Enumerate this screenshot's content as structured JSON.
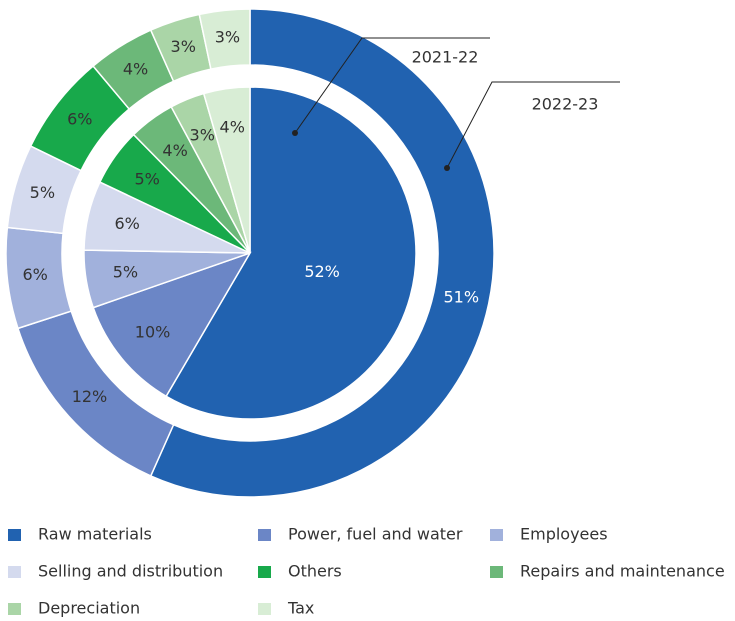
{
  "chart_data": {
    "type": "pie",
    "categories": [
      "Raw materials",
      "Power, fuel and water",
      "Employees",
      "Selling and distribution",
      "Others",
      "Repairs and maintenance",
      "Depreciation",
      "Tax"
    ],
    "colors": [
      "#2162b0",
      "#6b86c6",
      "#a1b1dc",
      "#d4daee",
      "#18a94b",
      "#6cb879",
      "#aad5a7",
      "#d8edd5"
    ],
    "series": [
      {
        "name": "2021-22",
        "values": [
          52,
          10,
          5,
          6,
          5,
          4,
          3,
          4
        ],
        "value_labels": [
          "52%",
          "10%",
          "5%",
          "6%",
          "5%",
          "4%",
          "3%",
          "4%"
        ]
      },
      {
        "name": "2022-23",
        "values": [
          51,
          12,
          6,
          5,
          6,
          4,
          3,
          3
        ],
        "value_labels": [
          "51%",
          "12%",
          "6%",
          "5%",
          "6%",
          "4%",
          "3%",
          "3%"
        ]
      }
    ]
  }
}
